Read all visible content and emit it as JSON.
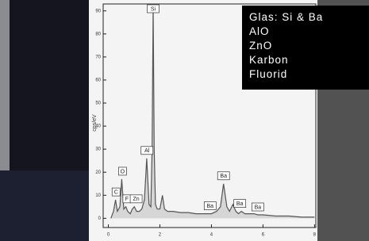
{
  "chart_data": {
    "type": "line",
    "ylabel": "cps/eV",
    "x": [
      0.1,
      0.2,
      0.28,
      0.35,
      0.45,
      0.52,
      0.6,
      0.68,
      0.75,
      0.85,
      0.93,
      1.01,
      1.1,
      1.2,
      1.3,
      1.4,
      1.49,
      1.58,
      1.65,
      1.7,
      1.74,
      1.78,
      1.83,
      1.9,
      2.0,
      2.1,
      2.18,
      2.3,
      2.5,
      2.8,
      3.1,
      3.4,
      3.7,
      4.0,
      4.2,
      4.35,
      4.47,
      4.6,
      4.7,
      4.83,
      4.95,
      5.05,
      5.16,
      5.3,
      5.45,
      5.53,
      5.65,
      5.8,
      6.0,
      6.5,
      7.0,
      7.5,
      8.0
    ],
    "values": [
      0,
      3,
      8,
      3,
      5,
      17,
      4,
      5,
      3,
      2,
      4,
      5,
      3,
      3,
      4,
      8,
      26,
      6,
      5,
      30,
      92,
      30,
      6,
      4,
      4,
      10,
      4,
      3,
      3,
      2.5,
      2.5,
      2,
      2,
      2,
      3,
      5,
      15,
      5,
      3,
      6,
      3,
      2,
      3,
      2,
      2,
      2,
      2,
      1.5,
      1.5,
      1,
      1,
      0.5,
      0.5
    ],
    "color": "#555555",
    "xlim": [
      -0.2,
      8.05
    ],
    "xticks": [
      0,
      2,
      4,
      6,
      8
    ],
    "ylim": [
      -4,
      93
    ],
    "yticks": [
      0,
      10,
      20,
      30,
      40,
      50,
      60,
      70,
      80,
      90
    ],
    "annotations": [
      {
        "text": "Si",
        "x": 1.74
      },
      {
        "text": "O",
        "x": 0.55
      },
      {
        "text": "Al",
        "x": 1.5
      },
      {
        "text": "C",
        "x": 0.3
      },
      {
        "text": "F",
        "x": 0.72
      },
      {
        "text": "Zn",
        "x": 1.08
      },
      {
        "text": "Ba",
        "x": 4.47
      },
      {
        "text": "Ba",
        "x": 3.95
      },
      {
        "text": "Ba",
        "x": 5.1
      },
      {
        "text": "Ba",
        "x": 5.8
      }
    ]
  },
  "overlay": {
    "lines": [
      "Glas: Si & Ba",
      "AlO",
      "ZnO",
      "Karbon",
      "Fluorid"
    ]
  }
}
